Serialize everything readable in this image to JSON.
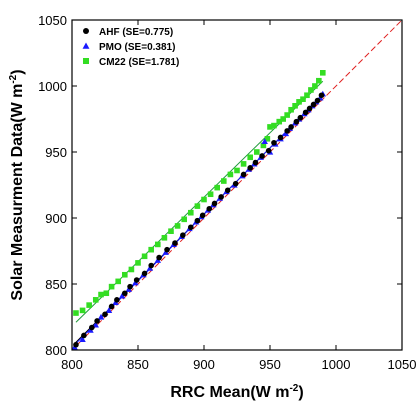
{
  "chart_data": {
    "type": "scatter",
    "xlabel": "RRC Mean(W m",
    "ylabel": "Solar Measurment Data(W m",
    "unit_exponent": "-2",
    "xlim": [
      800,
      1050
    ],
    "ylim": [
      800,
      1050
    ],
    "x_ticks": [
      "800",
      "850",
      "900",
      "950",
      "1000",
      "1050"
    ],
    "y_ticks": [
      "800",
      "850",
      "900",
      "950",
      "1000",
      "1050"
    ],
    "legend_position": "top-left",
    "reference_line": {
      "from": [
        800,
        800
      ],
      "to": [
        1050,
        1050
      ],
      "color": "#e02020",
      "style": "dashed"
    },
    "series": [
      {
        "name": "AHF (SE=0.775)",
        "marker": "circle",
        "color": "#000000",
        "fit_color": "#000000",
        "points": [
          [
            803,
            804
          ],
          [
            809,
            811
          ],
          [
            815,
            817
          ],
          [
            819,
            822
          ],
          [
            825,
            827
          ],
          [
            830,
            833
          ],
          [
            834,
            838
          ],
          [
            840,
            843
          ],
          [
            844,
            848
          ],
          [
            849,
            853
          ],
          [
            855,
            858
          ],
          [
            860,
            864
          ],
          [
            866,
            870
          ],
          [
            872,
            876
          ],
          [
            878,
            881
          ],
          [
            884,
            887
          ],
          [
            890,
            893
          ],
          [
            895,
            898
          ],
          [
            899,
            902
          ],
          [
            904,
            907
          ],
          [
            908,
            911
          ],
          [
            913,
            916
          ],
          [
            918,
            921
          ],
          [
            924,
            926
          ],
          [
            930,
            933
          ],
          [
            935,
            938
          ],
          [
            939,
            942
          ],
          [
            944,
            947
          ],
          [
            949,
            951
          ],
          [
            953,
            957
          ],
          [
            958,
            961
          ],
          [
            963,
            966
          ],
          [
            966,
            969
          ],
          [
            970,
            973
          ],
          [
            973,
            976
          ],
          [
            977,
            980
          ],
          [
            980,
            983
          ],
          [
            983,
            986
          ],
          [
            986,
            989
          ],
          [
            989,
            993
          ]
        ]
      },
      {
        "name": "PMO (SE=0.381)",
        "marker": "triangle",
        "color": "#1a1aff",
        "fit_color": "#1a1aff",
        "points": [
          [
            802,
            802
          ],
          [
            808,
            808
          ],
          [
            814,
            815
          ],
          [
            818,
            819
          ],
          [
            822,
            825
          ],
          [
            828,
            830
          ],
          [
            833,
            836
          ],
          [
            838,
            841
          ],
          [
            843,
            846
          ],
          [
            848,
            851
          ],
          [
            854,
            857
          ],
          [
            859,
            862
          ],
          [
            865,
            868
          ],
          [
            871,
            874
          ],
          [
            877,
            880
          ],
          [
            883,
            886
          ],
          [
            889,
            892
          ],
          [
            894,
            897
          ],
          [
            898,
            901
          ],
          [
            903,
            906
          ],
          [
            907,
            910
          ],
          [
            912,
            915
          ],
          [
            917,
            920
          ],
          [
            923,
            925
          ],
          [
            929,
            932
          ],
          [
            934,
            937
          ],
          [
            938,
            941
          ],
          [
            943,
            946
          ],
          [
            946,
            958
          ],
          [
            950,
            950
          ],
          [
            954,
            956
          ],
          [
            958,
            960
          ],
          [
            962,
            964
          ],
          [
            965,
            968
          ],
          [
            969,
            972
          ],
          [
            972,
            975
          ],
          [
            976,
            979
          ],
          [
            979,
            982
          ],
          [
            982,
            985
          ],
          [
            985,
            988
          ],
          [
            988,
            991
          ],
          [
            990,
            994
          ]
        ]
      },
      {
        "name": "CM22 (SE=1.781)",
        "marker": "square",
        "color": "#33dd22",
        "fit_color": "#1f9a3a",
        "points": [
          [
            803,
            828
          ],
          [
            808,
            830
          ],
          [
            813,
            834
          ],
          [
            818,
            838
          ],
          [
            822,
            842
          ],
          [
            826,
            843
          ],
          [
            830,
            848
          ],
          [
            835,
            852
          ],
          [
            840,
            857
          ],
          [
            845,
            861
          ],
          [
            850,
            866
          ],
          [
            855,
            871
          ],
          [
            860,
            876
          ],
          [
            865,
            880
          ],
          [
            870,
            885
          ],
          [
            875,
            890
          ],
          [
            880,
            894
          ],
          [
            885,
            899
          ],
          [
            890,
            904
          ],
          [
            895,
            909
          ],
          [
            900,
            914
          ],
          [
            905,
            918
          ],
          [
            910,
            923
          ],
          [
            915,
            928
          ],
          [
            920,
            933
          ],
          [
            925,
            936
          ],
          [
            930,
            941
          ],
          [
            935,
            946
          ],
          [
            940,
            950
          ],
          [
            945,
            955
          ],
          [
            948,
            960
          ],
          [
            950,
            969
          ],
          [
            953,
            970
          ],
          [
            957,
            973
          ],
          [
            960,
            975
          ],
          [
            963,
            978
          ],
          [
            966,
            982
          ],
          [
            969,
            985
          ],
          [
            972,
            988
          ],
          [
            975,
            990
          ],
          [
            978,
            993
          ],
          [
            981,
            997
          ],
          [
            984,
            1000
          ],
          [
            987,
            1004
          ],
          [
            990,
            1010
          ]
        ]
      }
    ]
  }
}
